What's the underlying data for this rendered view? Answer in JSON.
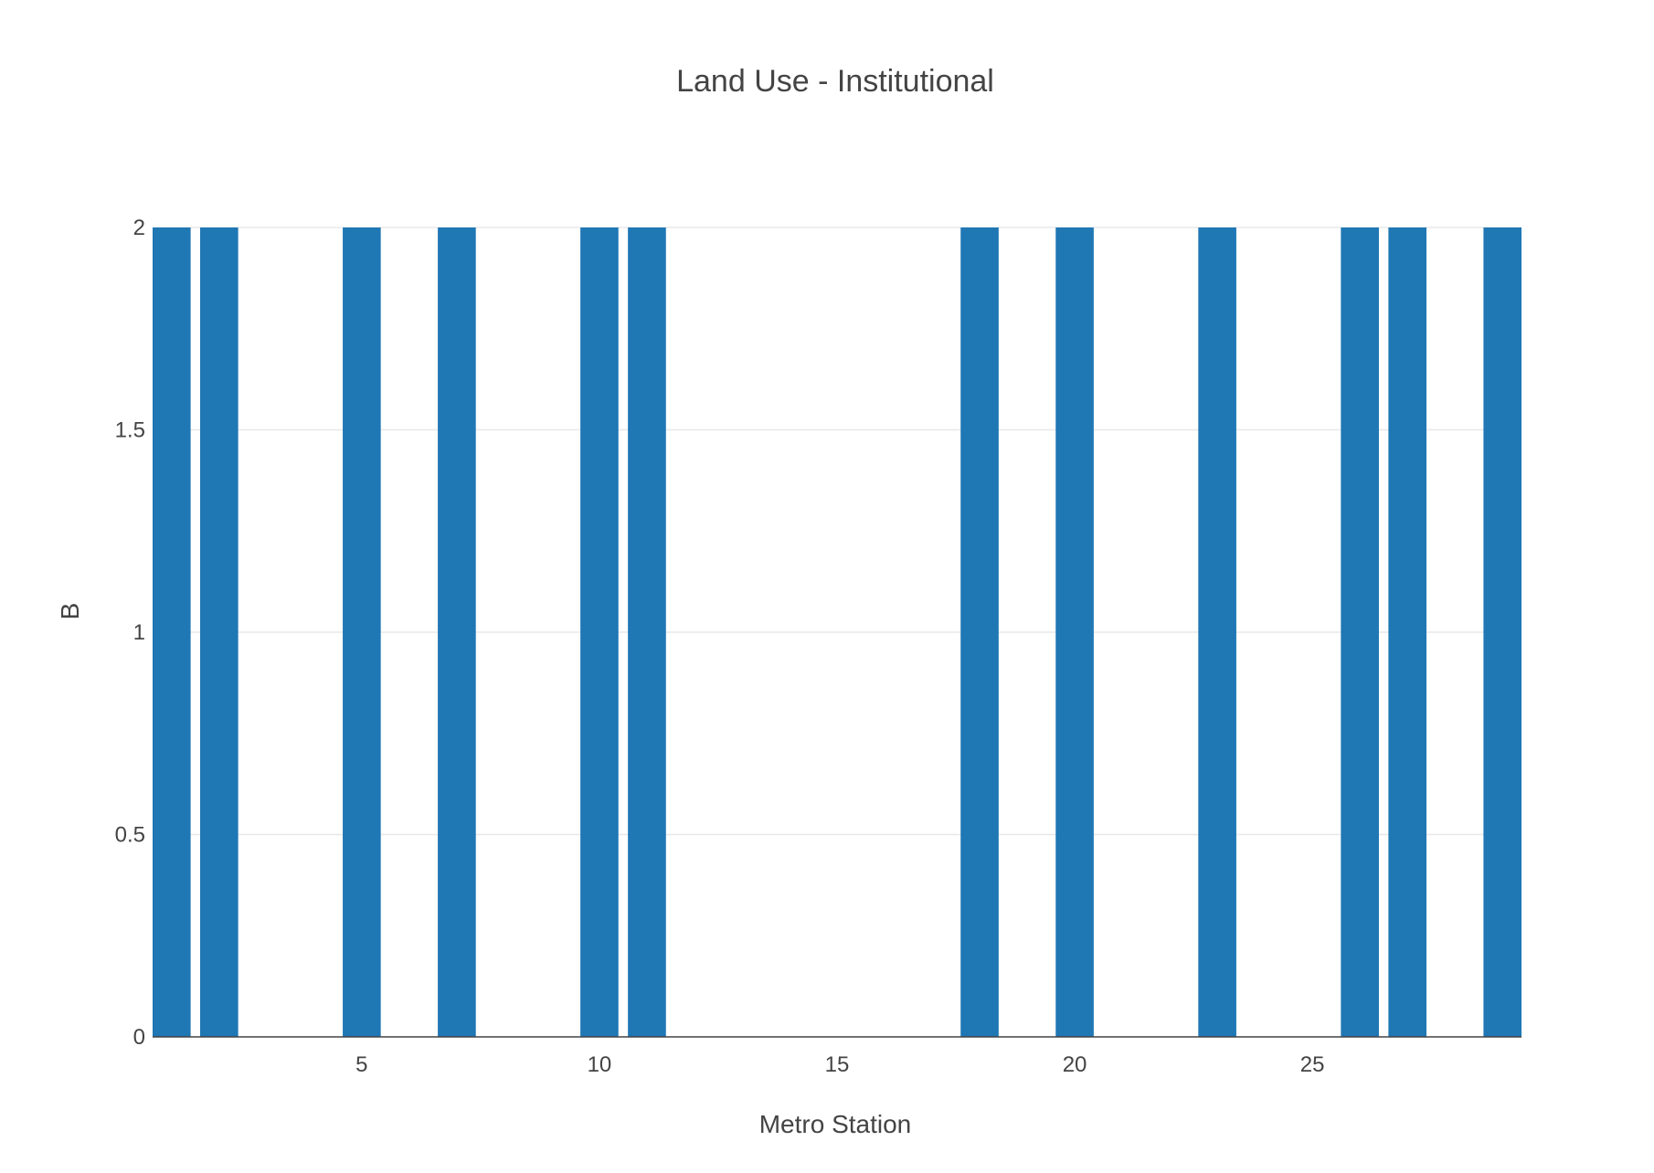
{
  "chart_data": {
    "type": "bar",
    "title": "Land Use - Institutional",
    "xlabel": "Metro Station",
    "ylabel": "B",
    "x": [
      1,
      2,
      5,
      7,
      10,
      11,
      18,
      20,
      23,
      26,
      27,
      29
    ],
    "values": [
      2,
      2,
      2,
      2,
      2,
      2,
      2,
      2,
      2,
      2,
      2,
      2
    ],
    "xlim": [
      0.6,
      29.4
    ],
    "ylim": [
      0,
      2
    ],
    "x_ticks": [
      5,
      10,
      15,
      20,
      25
    ],
    "y_ticks": [
      0,
      0.5,
      1,
      1.5,
      2
    ],
    "x_tick_labels": [
      "5",
      "10",
      "15",
      "20",
      "25"
    ],
    "y_tick_labels": [
      "0",
      "0.5",
      "1",
      "1.5",
      "2"
    ],
    "bar_color": "#1f77b4",
    "grid": true,
    "legend": "none"
  }
}
